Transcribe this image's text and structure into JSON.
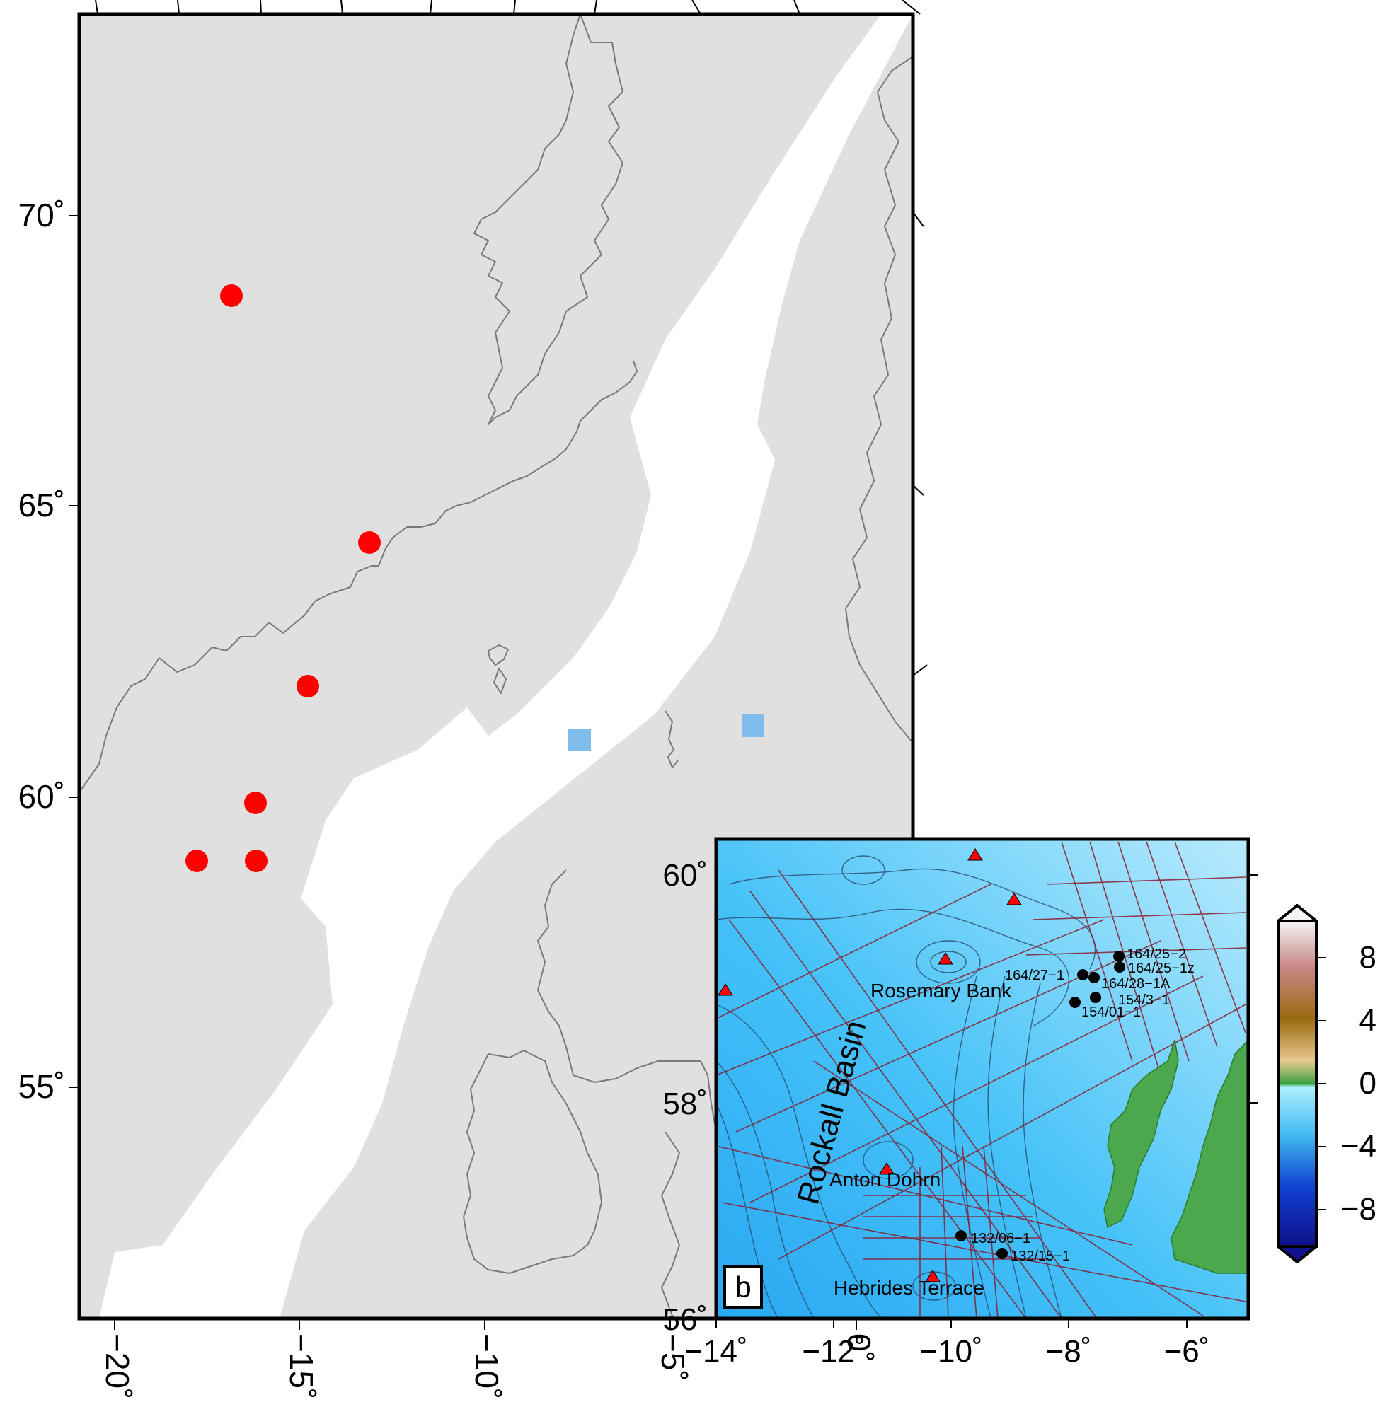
{
  "main_map": {
    "lat_ticks": [
      "70˚",
      "65˚",
      "60˚",
      "55˚"
    ],
    "lon_ticks": [
      "−20˚",
      "−15˚",
      "−10˚",
      "−5˚",
      "0˚"
    ],
    "volcanic_centres": 6,
    "square_sites": 2,
    "land_color": "#e0e0e0",
    "sea_color": "#ffffff",
    "coast_color": "#7a7a7a",
    "circle_color": "#ff0000",
    "square_color": "#7fbcec"
  },
  "inset_map": {
    "panel_label": "b",
    "lat_ticks": [
      "60˚",
      "58˚",
      "56˚"
    ],
    "lon_ticks": [
      "−14˚",
      "−12˚",
      "−10˚",
      "−8˚",
      "−6˚"
    ],
    "basin_label": "Rockall Basin",
    "seamounts": [
      "Rosemary Bank",
      "Anton Dohrn",
      "Hebrides Terrace"
    ],
    "wells": [
      "164/25−2",
      "164/25−1z",
      "164/27−1",
      "164/28−1A",
      "154/3−1",
      "154/01−1",
      "132/06−1",
      "132/15−1"
    ],
    "triangle_color": "#ff0000",
    "profile_color": "#8b1a2e",
    "well_color": "#000000"
  },
  "colorbar": {
    "ticks": [
      "8",
      "4",
      "0",
      "−4",
      "−8"
    ],
    "colors": [
      "#f5f5f5",
      "#c88888",
      "#9a6a10",
      "#e8c890",
      "#3aa040",
      "#aef0ff",
      "#40b8f0",
      "#1040d0",
      "#10108a"
    ]
  }
}
